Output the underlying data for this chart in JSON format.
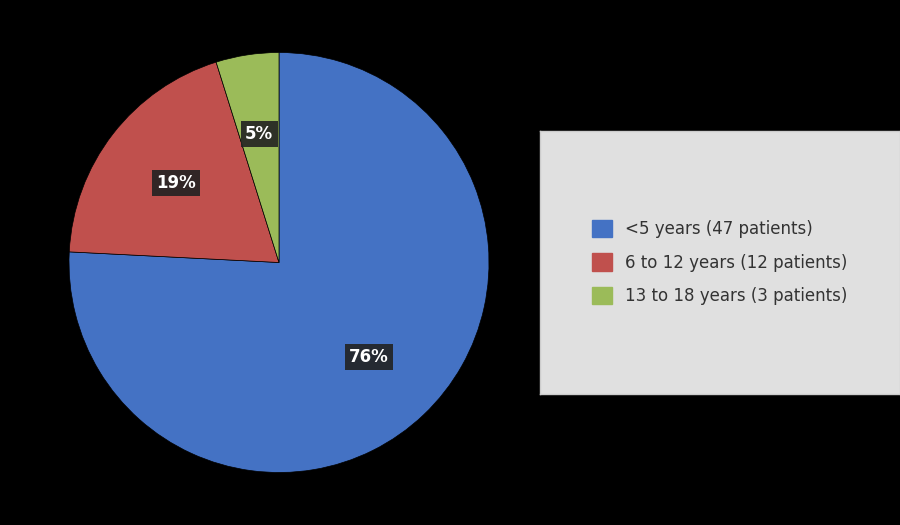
{
  "slices": [
    47,
    12,
    3
  ],
  "percentages": [
    "76%",
    "19%",
    "5%"
  ],
  "colors": [
    "#4472C4",
    "#C0504D",
    "#9BBB59"
  ],
  "labels": [
    "<5 years (47 patients)",
    "6 to 12 years (12 patients)",
    "13 to 18 years (3 patients)"
  ],
  "background_color": "#000000",
  "legend_bg_color": "#E0E0E0",
  "legend_edge_color": "#CCCCCC",
  "label_font_color": "#FFFFFF",
  "label_bg_color": "#222222",
  "label_fontsize": 12,
  "legend_fontsize": 12,
  "startangle": 90
}
